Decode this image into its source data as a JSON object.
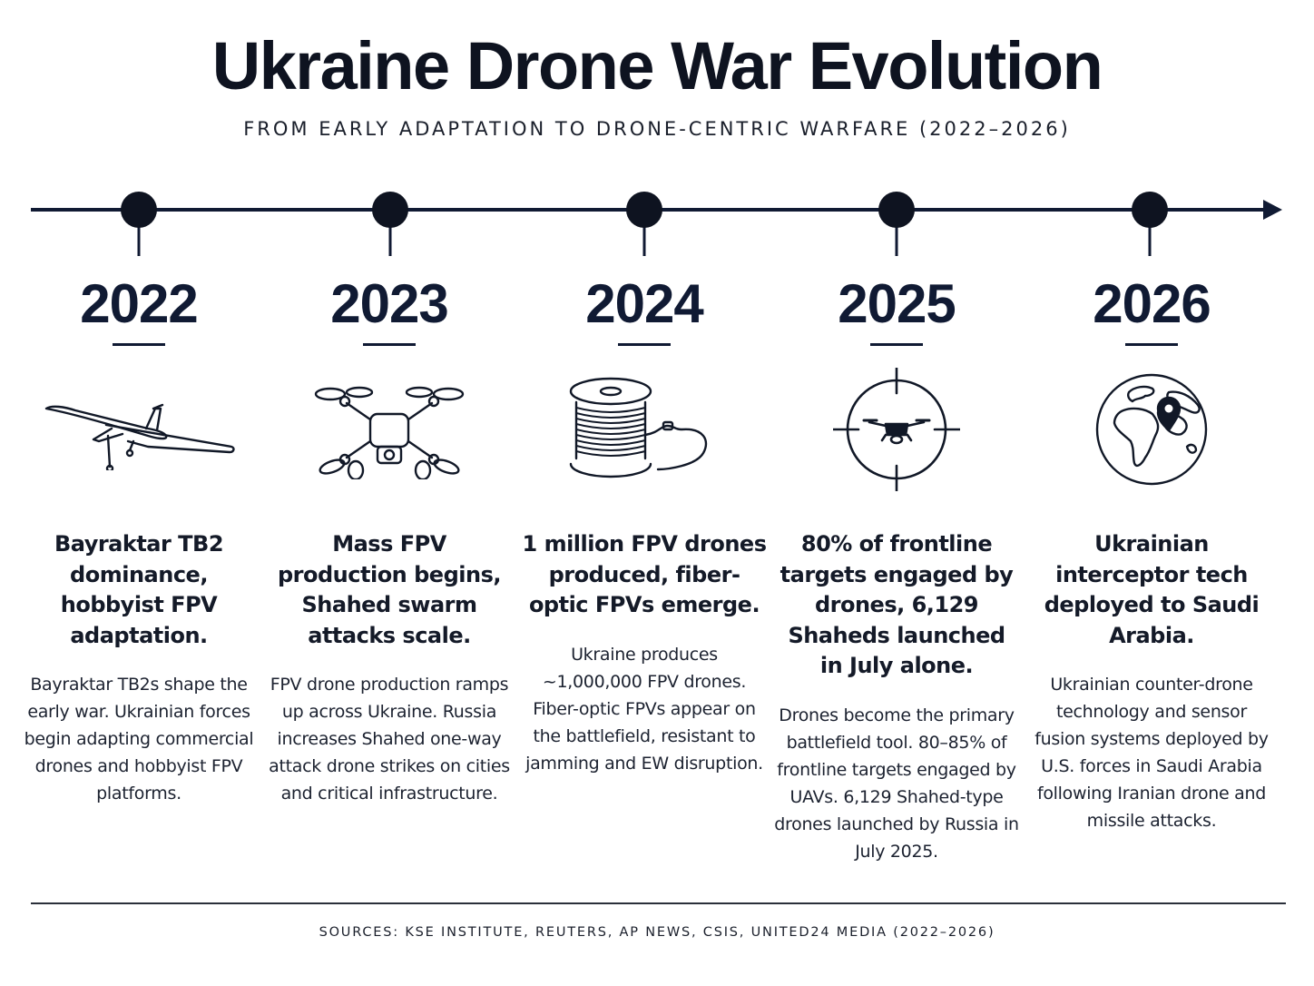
{
  "title": "Ukraine Drone War Evolution",
  "subtitle": "FROM EARLY ADAPTATION TO DRONE-CENTRIC WARFARE (2022–2026)",
  "colors": {
    "ink": "#0e1320",
    "navy": "#101a33",
    "background": "#ffffff"
  },
  "timeline": [
    {
      "year": "2022",
      "icon": "fixed-wing-drone-icon",
      "headline": "Bayraktar TB2 dominance, hobbyist FPV adaptation.",
      "description": "Bayraktar TB2s shape the early war. Ukrainian forces begin adapting commercial drones and hobbyist FPV platforms."
    },
    {
      "year": "2023",
      "icon": "quadcopter-icon",
      "headline": "Mass FPV production begins, Shahed swarm attacks scale.",
      "description": "FPV drone production ramps up across Ukraine. Russia increases Shahed one-way attack drone strikes on cities and critical infrastructure."
    },
    {
      "year": "2024",
      "icon": "fiber-optic-spool-icon",
      "headline": "1 million FPV drones produced, fiber-optic FPVs emerge.",
      "description": "Ukraine produces ~1,000,000 FPV drones. Fiber-optic FPVs appear on the battlefield, resistant to jamming and EW disruption."
    },
    {
      "year": "2025",
      "icon": "crosshair-drone-icon",
      "headline": "80% of frontline targets engaged by drones, 6,129 Shaheds launched in July alone.",
      "description": "Drones become the primary battlefield tool. 80–85% of frontline targets engaged by UAVs. 6,129 Shahed-type drones launched by Russia in July 2025."
    },
    {
      "year": "2026",
      "icon": "globe-location-icon",
      "headline": "Ukrainian interceptor tech deployed to Saudi Arabia.",
      "description": "Ukrainian counter-drone technology and sensor fusion systems deployed by U.S. forces in Saudi Arabia following Iranian drone and missile attacks."
    }
  ],
  "sources": "SOURCES: KSE INSTITUTE, REUTERS, AP NEWS, CSIS, UNITED24 MEDIA (2022–2026)"
}
